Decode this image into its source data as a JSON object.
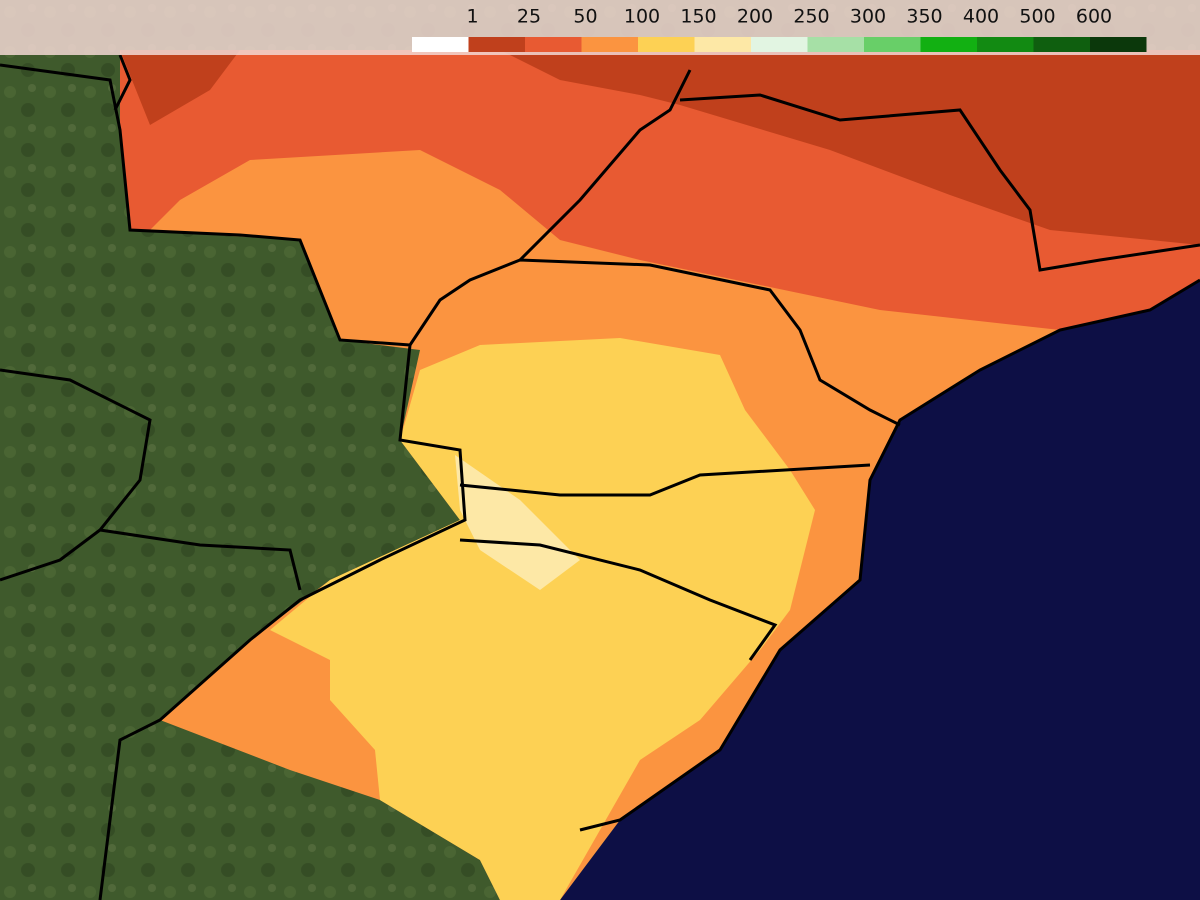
{
  "legend": {
    "labels": [
      1,
      25,
      50,
      100,
      150,
      200,
      250,
      300,
      350,
      400,
      500,
      600
    ],
    "colors": [
      "#ffffff",
      "#c0401c",
      "#e85a32",
      "#fb9440",
      "#fdd154",
      "#fde8a6",
      "#e2f5e2",
      "#a6e0a6",
      "#68cf68",
      "#12b012",
      "#128a12",
      "#0f5f0f",
      "#0b380b"
    ]
  }
}
